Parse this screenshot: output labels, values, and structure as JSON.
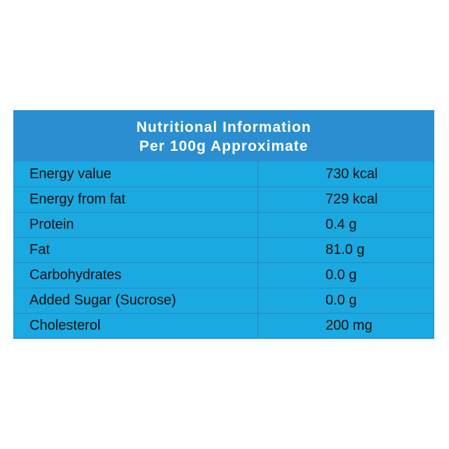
{
  "table": {
    "title": [
      "Nutritional Information",
      "Per 100g Approximate"
    ],
    "rows": [
      [
        "Energy value",
        "730 kcal"
      ],
      [
        "Energy from fat",
        "729 kcal"
      ],
      [
        "Protein",
        "0.4 g"
      ],
      [
        "Fat",
        "81.0 g"
      ],
      [
        "Carbohydrates",
        "0.0 g"
      ],
      [
        "Added Sugar (Sucrose)",
        "0.0 g"
      ],
      [
        "Cholesterol",
        "200 mg"
      ]
    ]
  }
}
